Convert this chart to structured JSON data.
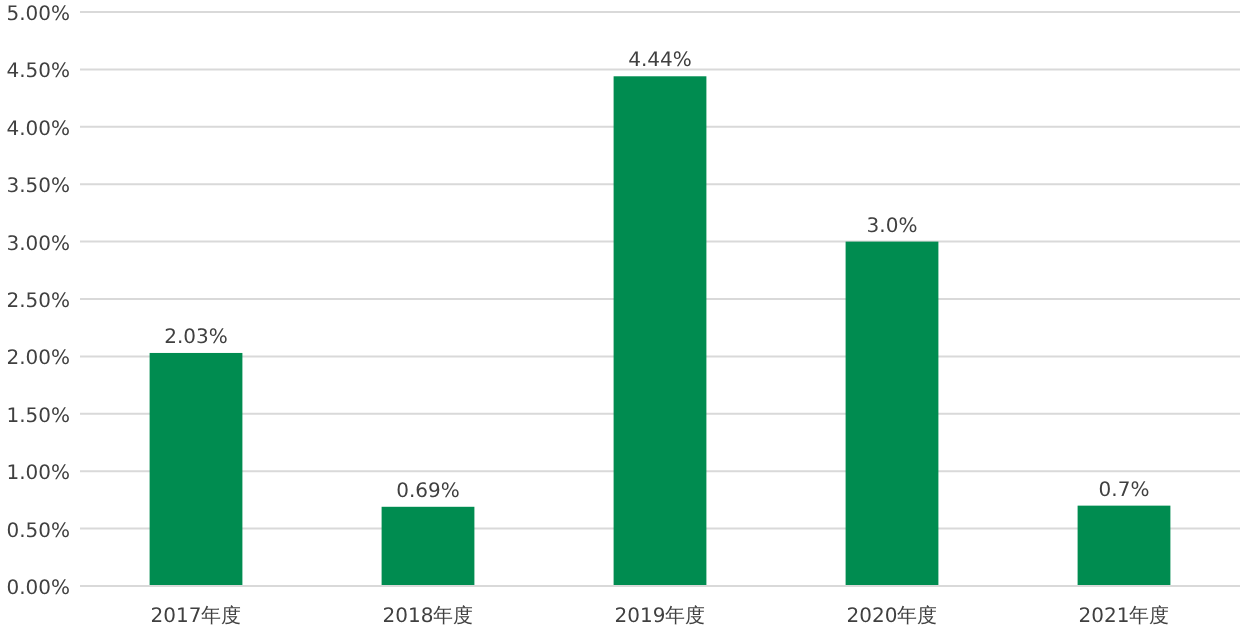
{
  "chart_data": {
    "type": "bar",
    "categories": [
      "2017年度",
      "2018年度",
      "2019年度",
      "2020年度",
      "2021年度"
    ],
    "values": [
      2.03,
      0.69,
      4.44,
      3.0,
      0.7
    ],
    "value_labels": [
      "2.03%",
      "0.69%",
      "4.44%",
      "3.0%",
      "0.7%"
    ],
    "color": "#008c50",
    "ylim": [
      0,
      5
    ],
    "yticks": [
      {
        "value": 0,
        "label": "0.00%"
      },
      {
        "value": 0.5,
        "label": "0.50%"
      },
      {
        "value": 1,
        "label": "1.00%"
      },
      {
        "value": 1.5,
        "label": "1.50%"
      },
      {
        "value": 2,
        "label": "2.00%"
      },
      {
        "value": 2.5,
        "label": "2.50%"
      },
      {
        "value": 3,
        "label": "3.00%"
      },
      {
        "value": 3.5,
        "label": "3.50%"
      },
      {
        "value": 4,
        "label": "4.00%"
      },
      {
        "value": 4.5,
        "label": "4.50%"
      },
      {
        "value": 5,
        "label": "5.00%"
      }
    ],
    "grid": "y"
  }
}
